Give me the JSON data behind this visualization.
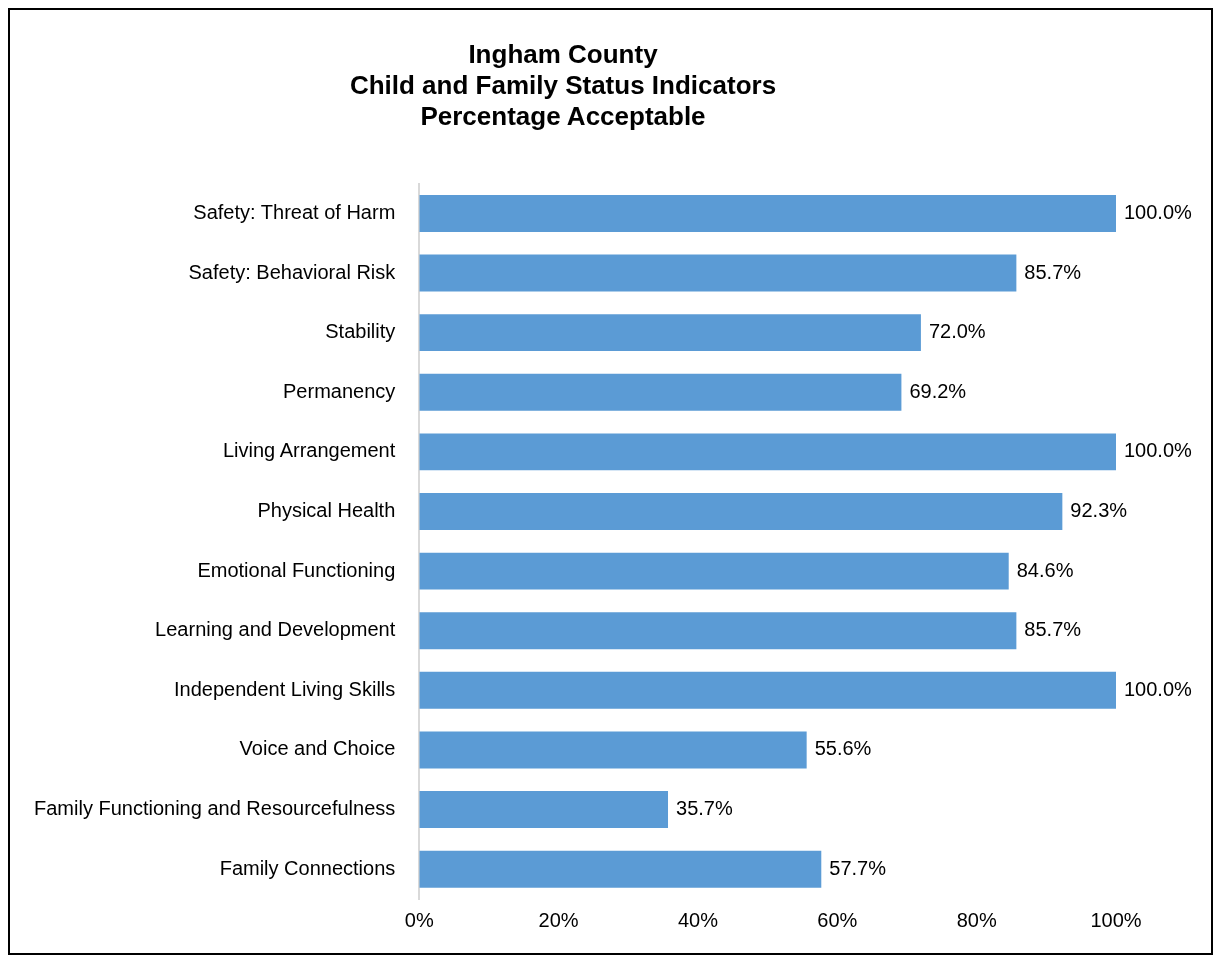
{
  "chart_data": {
    "type": "bar",
    "orientation": "horizontal",
    "title": "Ingham County\nChild and Family Status Indicators\nPercentage Acceptable",
    "categories": [
      "Safety: Threat of Harm",
      "Safety: Behavioral Risk",
      "Stability",
      "Permanency",
      "Living Arrangement",
      "Physical Health",
      "Emotional Functioning",
      "Learning and Development",
      "Independent Living Skills",
      "Voice and Choice",
      "Family Functioning and Resourcefulness",
      "Family Connections"
    ],
    "values": [
      100.0,
      85.7,
      72.0,
      69.2,
      100.0,
      92.3,
      84.6,
      85.7,
      100.0,
      55.6,
      35.7,
      57.7
    ],
    "value_labels": [
      "100.0%",
      "85.7%",
      "72.0%",
      "69.2%",
      "100.0%",
      "92.3%",
      "84.6%",
      "85.7%",
      "100.0%",
      "55.6%",
      "35.7%",
      "57.7%"
    ],
    "color": "#5b9bd5",
    "xlim": [
      0,
      100
    ],
    "xticks": [
      {
        "value": 0,
        "label": "0%"
      },
      {
        "value": 20,
        "label": "20%"
      },
      {
        "value": 40,
        "label": "40%"
      },
      {
        "value": 60,
        "label": "60%"
      },
      {
        "value": 80,
        "label": "80%"
      },
      {
        "value": 100,
        "label": "100%"
      }
    ],
    "grid": false
  }
}
